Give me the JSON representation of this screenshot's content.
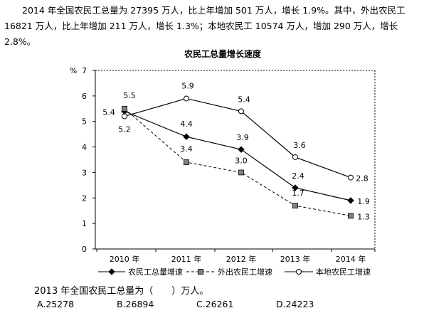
{
  "intro_text": "2014 年全国农民工总量为 27395 万人，比上年增加 501 万人，增长 1.9%。其中，外出农民工 16821 万人，比上年增加 211 万人，增长 1.3%；本地农民工 10574 万人，增加 290 万人，增长 2.8%。",
  "question": {
    "text": "2013 年全国农民工总量为（　　）万人。",
    "options": [
      "A.25278",
      "B.26894",
      "C.26261",
      "D.24223"
    ]
  },
  "chart_data": {
    "type": "line",
    "title": "农民工总量增长速度",
    "ylabel": "%",
    "ylim": [
      0,
      7
    ],
    "yticks": [
      "0",
      "1",
      "2",
      "3",
      "4",
      "5",
      "6",
      "7"
    ],
    "categories": [
      "2010 年",
      "2011 年",
      "2012 年",
      "2013 年",
      "2014 年"
    ],
    "legend_position": "bottom",
    "series": [
      {
        "name": "农民工总量增速",
        "values": [
          5.4,
          4.4,
          3.9,
          2.4,
          1.9
        ],
        "labels": [
          "5.4",
          "4.4",
          "3.9",
          "2.4",
          "1.9"
        ],
        "marker": "diamond",
        "line": "solid"
      },
      {
        "name": "外出农民工增速",
        "values": [
          5.5,
          3.4,
          3.0,
          1.7,
          1.3
        ],
        "labels": [
          "5.5",
          "3.4",
          "3.0",
          "1.7",
          "1.3"
        ],
        "marker": "square",
        "line": "dashed"
      },
      {
        "name": "本地农民工增速",
        "values": [
          5.2,
          5.9,
          5.4,
          3.6,
          2.8
        ],
        "labels": [
          "5.2",
          "5.9",
          "5.4",
          "3.6",
          "2.8"
        ],
        "marker": "circle",
        "line": "solid"
      }
    ],
    "colors": {
      "line": "#000000",
      "square_fill": "#808080",
      "circle_fill": "#ffffff"
    }
  }
}
